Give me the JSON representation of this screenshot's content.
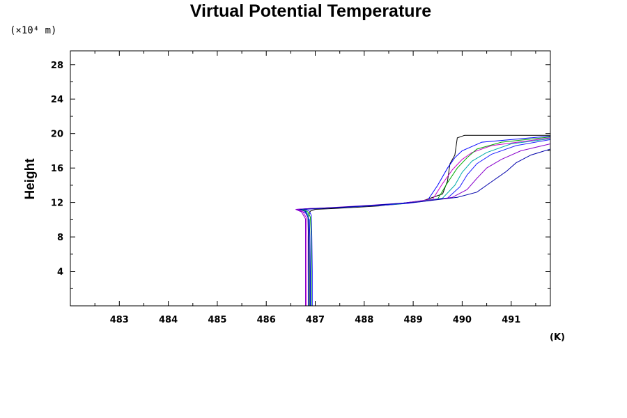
{
  "chart_data": {
    "type": "line",
    "title": "Virtual Potential Temperature",
    "xlabel": "(K)",
    "ylabel": "Height",
    "y_scale_label": "(×10⁴ m)",
    "xlim": [
      482,
      491.8
    ],
    "ylim": [
      0,
      29.6
    ],
    "xticks": [
      "483",
      "484",
      "485",
      "486",
      "487",
      "488",
      "489",
      "490",
      "491"
    ],
    "xtick_values": [
      483,
      484,
      485,
      486,
      487,
      488,
      489,
      490,
      491
    ],
    "yticks": [
      "4",
      "8",
      "12",
      "16",
      "20",
      "24",
      "28"
    ],
    "ytick_values": [
      4,
      8,
      12,
      16,
      20,
      24,
      28
    ],
    "grid": false,
    "series_colors": [
      "#000000",
      "#0000ff",
      "#cc00cc",
      "#00aa00",
      "#00aaaa",
      "#2020ff",
      "#8800cc",
      "#0000aa"
    ],
    "series": [
      {
        "color": "#000000",
        "x": [
          486.88,
          486.88,
          486.87,
          486.86,
          486.9,
          487.0,
          487.4,
          488.3,
          489.2,
          489.6,
          489.7,
          489.75,
          489.85,
          489.9,
          490.05,
          491.8
        ],
        "y": [
          0,
          4,
          8,
          10.5,
          11.0,
          11.2,
          11.3,
          11.6,
          12.2,
          13.0,
          14.5,
          16.5,
          17.5,
          19.5,
          19.8,
          19.8
        ]
      },
      {
        "color": "#0000ff",
        "x": [
          486.9,
          486.9,
          486.89,
          486.88,
          486.8,
          486.62,
          486.9,
          487.5,
          488.5,
          489.3,
          489.5,
          489.7,
          489.85,
          490.0,
          490.4,
          491.8
        ],
        "y": [
          0,
          4,
          8,
          10.0,
          10.8,
          11.2,
          11.3,
          11.4,
          11.7,
          12.3,
          14.0,
          16.0,
          17.2,
          18.0,
          19.0,
          19.7
        ]
      },
      {
        "color": "#cc00cc",
        "x": [
          486.82,
          486.83,
          486.83,
          486.82,
          486.75,
          486.65,
          486.9,
          487.6,
          488.6,
          489.4,
          489.6,
          489.8,
          490.0,
          490.2,
          490.6,
          491.8
        ],
        "y": [
          0,
          4,
          8,
          10.2,
          10.9,
          11.2,
          11.3,
          11.45,
          11.75,
          12.4,
          14.2,
          15.8,
          17.0,
          17.8,
          18.6,
          19.5
        ]
      },
      {
        "color": "#00aa00",
        "x": [
          486.92,
          486.92,
          486.92,
          486.9,
          486.85,
          486.75,
          487.0,
          487.7,
          488.7,
          489.5,
          489.7,
          489.9,
          490.1,
          490.3,
          490.8,
          491.8
        ],
        "y": [
          0,
          4,
          8,
          10.3,
          10.9,
          11.2,
          11.3,
          11.5,
          11.8,
          12.4,
          14.3,
          16.0,
          17.2,
          18.2,
          19.0,
          19.6
        ]
      },
      {
        "color": "#00aaaa",
        "x": [
          486.87,
          486.87,
          486.86,
          486.86,
          486.82,
          486.7,
          487.0,
          487.8,
          488.8,
          489.6,
          489.85,
          490.0,
          490.2,
          490.5,
          491.0,
          491.8
        ],
        "y": [
          0,
          4,
          8,
          10.4,
          10.95,
          11.2,
          11.3,
          11.5,
          11.85,
          12.5,
          14.0,
          15.5,
          16.8,
          17.8,
          18.8,
          19.4
        ]
      },
      {
        "color": "#2020ff",
        "x": [
          486.94,
          486.94,
          486.93,
          486.92,
          486.88,
          486.78,
          487.1,
          487.9,
          488.9,
          489.7,
          489.95,
          490.1,
          490.3,
          490.6,
          491.1,
          491.8
        ],
        "y": [
          0,
          4,
          8,
          10.5,
          11.0,
          11.2,
          11.3,
          11.55,
          11.9,
          12.5,
          13.8,
          15.2,
          16.5,
          17.6,
          18.6,
          19.3
        ]
      },
      {
        "color": "#8800cc",
        "x": [
          486.8,
          486.8,
          486.8,
          486.8,
          486.72,
          486.6,
          487.0,
          487.9,
          489.0,
          489.8,
          490.1,
          490.3,
          490.5,
          490.8,
          491.2,
          491.8
        ],
        "y": [
          0,
          4,
          8,
          10.1,
          10.9,
          11.2,
          11.3,
          11.6,
          12.0,
          12.6,
          13.5,
          14.8,
          16.0,
          17.0,
          18.0,
          18.8
        ]
      },
      {
        "color": "#0000aa",
        "x": [
          486.86,
          486.86,
          486.86,
          486.85,
          486.8,
          486.68,
          487.1,
          488.0,
          489.1,
          489.9,
          490.3,
          490.6,
          490.9,
          491.1,
          491.4,
          491.8
        ],
        "y": [
          0,
          4,
          8,
          10.3,
          10.95,
          11.2,
          11.3,
          11.6,
          12.05,
          12.6,
          13.2,
          14.4,
          15.6,
          16.6,
          17.5,
          18.2
        ]
      }
    ]
  }
}
